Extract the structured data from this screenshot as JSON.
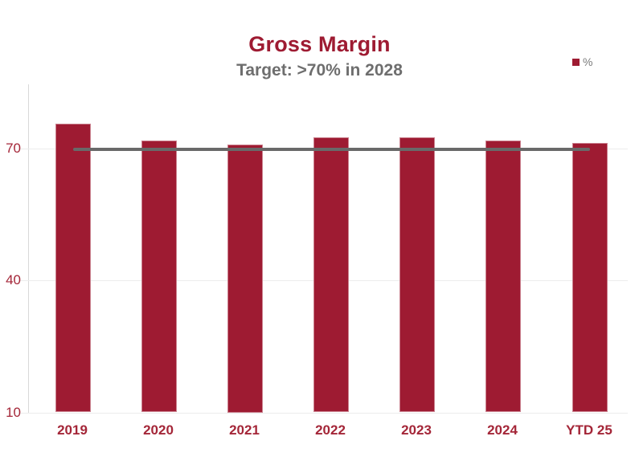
{
  "chart": {
    "title": "Gross Margin",
    "subtitle": "Target: >70% in 2028",
    "legend_label": "%"
  },
  "chart_data": {
    "type": "bar",
    "title": "Gross Margin",
    "subtitle": "Target: >70% in 2028",
    "categories": [
      "2019",
      "2020",
      "2021",
      "2022",
      "2023",
      "2024",
      "YTD 25"
    ],
    "series": [
      {
        "name": "%",
        "values": [
          75.7,
          71.9,
          71.1,
          72.6,
          72.6,
          71.9,
          71.3
        ]
      }
    ],
    "target_line": {
      "value": 70
    },
    "y_ticks": [
      10,
      40,
      70
    ],
    "ylim": [
      10,
      85
    ],
    "xlabel": "",
    "ylabel": "",
    "grid": true,
    "legend_position": "top-right",
    "legend_entries": [
      "%"
    ],
    "colors": {
      "bar": "#9e1b32",
      "title": "#9e1b32",
      "subtitle": "#6e6e6e",
      "target_line": "#696969",
      "axis_labels": "#a42638",
      "gridline": "#ececec",
      "axis_line": "#d9d9d9",
      "legend_label": "#7a7a7a"
    }
  }
}
